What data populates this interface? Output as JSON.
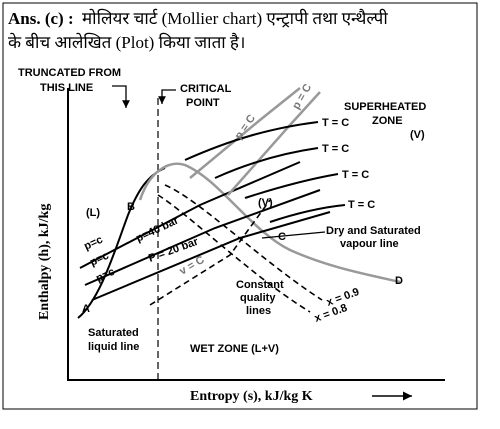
{
  "answer": {
    "label": "Ans. (c) :",
    "line1": "मोलियर चार्ट (Mollier chart) एन्ट्रापी तथा एन्थैल्पी",
    "line2": "के बीच आलेखित (Plot) किया जाता है।"
  },
  "diagram": {
    "truncated": [
      "TRUNCATED FROM",
      "THIS LINE"
    ],
    "critical": [
      "CRITICAL",
      "POINT"
    ],
    "superheated": [
      "SUPERHEATED",
      "ZONE",
      "(V)"
    ],
    "temperature_labels": [
      "T = C",
      "T = C",
      "T = C",
      "T = C"
    ],
    "pressure_c_labels": [
      "p = C",
      "p = C"
    ],
    "liquid_zone": "(L)",
    "point_b": "B",
    "point_a": "A",
    "point_c": "C",
    "point_d": "D",
    "p_small_labels": [
      "p=c",
      "p=c",
      "p=c"
    ],
    "p40": "p=40 bar",
    "p20": "P = 20 bar",
    "v_label": "v = C",
    "vapour_zone": "(V)",
    "dry_line": [
      "Dry and Saturated",
      "vapour line"
    ],
    "quality": [
      "Constant",
      "quality",
      "lines"
    ],
    "x09": "x = 0.9",
    "x08": "x = 0.8",
    "sat_liquid": [
      "Saturated",
      "liquid line"
    ],
    "wet_zone": "WET ZONE (L+V)",
    "x_axis": "Entropy (s), kJ/kg K",
    "y_axis": "Enthalpy (h), kJ/kg"
  }
}
